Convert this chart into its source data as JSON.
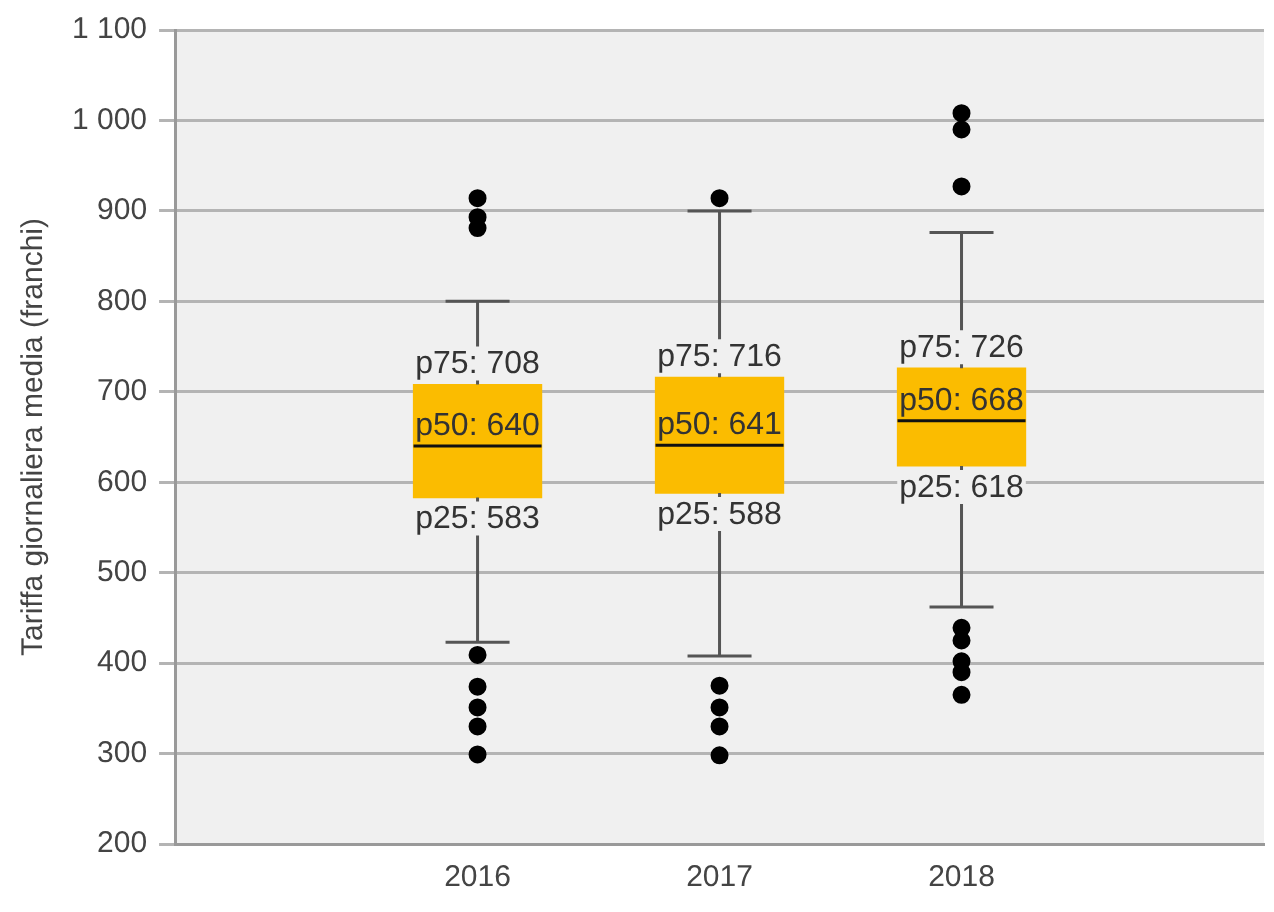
{
  "chart_data": {
    "type": "box",
    "ylabel": "Tariffa giornaliera media (franchi)",
    "categories": [
      "2016",
      "2017",
      "2018"
    ],
    "color": "#fbbc00",
    "boxes": [
      {
        "low": 423,
        "q1": 583,
        "median": 640,
        "q3": 708,
        "high": 800,
        "outliers": [
          914,
          893,
          881,
          409,
          374,
          351,
          330,
          299
        ]
      },
      {
        "low": 408,
        "q1": 588,
        "median": 641,
        "q3": 716,
        "high": 900,
        "outliers": [
          914,
          375,
          351,
          330,
          298
        ]
      },
      {
        "low": 462,
        "q1": 618,
        "median": 668,
        "q3": 726,
        "high": 876,
        "outliers": [
          1008,
          990,
          927,
          439,
          425,
          402,
          390,
          365
        ]
      }
    ],
    "ylim": [
      200,
      1100
    ],
    "yticks": [
      200,
      300,
      400,
      500,
      600,
      700,
      800,
      900,
      {
        "value": 1000,
        "label": "1 000"
      },
      {
        "value": 1100,
        "label": "1 100"
      }
    ],
    "grid": "y",
    "legend": false,
    "annotations": [
      {
        "text": "p75: 708",
        "x": "2016",
        "y": 708
      },
      {
        "text": "p50: 640",
        "x": "2016",
        "y": 640
      },
      {
        "text": "p25: 583",
        "x": "2016",
        "y": 583
      },
      {
        "text": "p75: 716",
        "x": "2017",
        "y": 716
      },
      {
        "text": "p50: 641",
        "x": "2017",
        "y": 641
      },
      {
        "text": "p25: 588",
        "x": "2017",
        "y": 588
      },
      {
        "text": "p75: 726",
        "x": "2018",
        "y": 726
      },
      {
        "text": "p50: 668",
        "x": "2018",
        "y": 668
      },
      {
        "text": "p25: 618",
        "x": "2018",
        "y": 618
      }
    ]
  }
}
